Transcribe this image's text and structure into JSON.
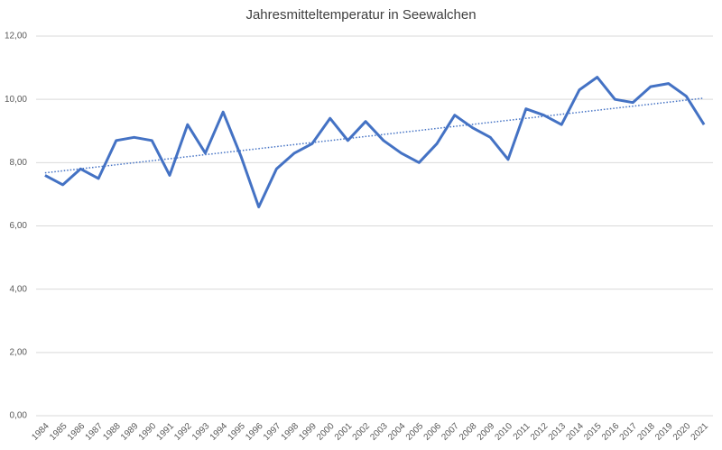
{
  "chart_data": {
    "type": "line",
    "title": "Jahresmitteltemperatur in Seewalchen",
    "categories": [
      "1984",
      "1985",
      "1986",
      "1987",
      "1988",
      "1989",
      "1990",
      "1991",
      "1992",
      "1993",
      "1994",
      "1995",
      "1996",
      "1997",
      "1998",
      "1999",
      "2000",
      "2001",
      "2002",
      "2003",
      "2004",
      "2005",
      "2006",
      "2007",
      "2008",
      "2009",
      "2010",
      "2011",
      "2012",
      "2013",
      "2014",
      "2015",
      "2016",
      "2017",
      "2018",
      "2019",
      "2020",
      "2021"
    ],
    "values": [
      7.6,
      7.3,
      7.8,
      7.5,
      8.7,
      8.8,
      8.7,
      7.6,
      9.2,
      8.3,
      9.6,
      8.2,
      6.6,
      7.8,
      8.3,
      8.6,
      9.4,
      8.7,
      9.3,
      8.7,
      8.3,
      8.0,
      8.6,
      9.5,
      9.1,
      8.8,
      8.1,
      9.7,
      9.5,
      9.2,
      10.3,
      10.7,
      10.0,
      9.9,
      10.4,
      10.5,
      10.1,
      9.2
    ],
    "color": "#4472c4",
    "trendline": true,
    "grid": true,
    "ylim": [
      0,
      12
    ],
    "yticks": [
      {
        "value": 0,
        "label": "0,00"
      },
      {
        "value": 2,
        "label": "2,00"
      },
      {
        "value": 4,
        "label": "4,00"
      },
      {
        "value": 6,
        "label": "6,00"
      },
      {
        "value": 8,
        "label": "8,00"
      },
      {
        "value": 10,
        "label": "10,00"
      },
      {
        "value": 12,
        "label": "12,00"
      }
    ]
  }
}
